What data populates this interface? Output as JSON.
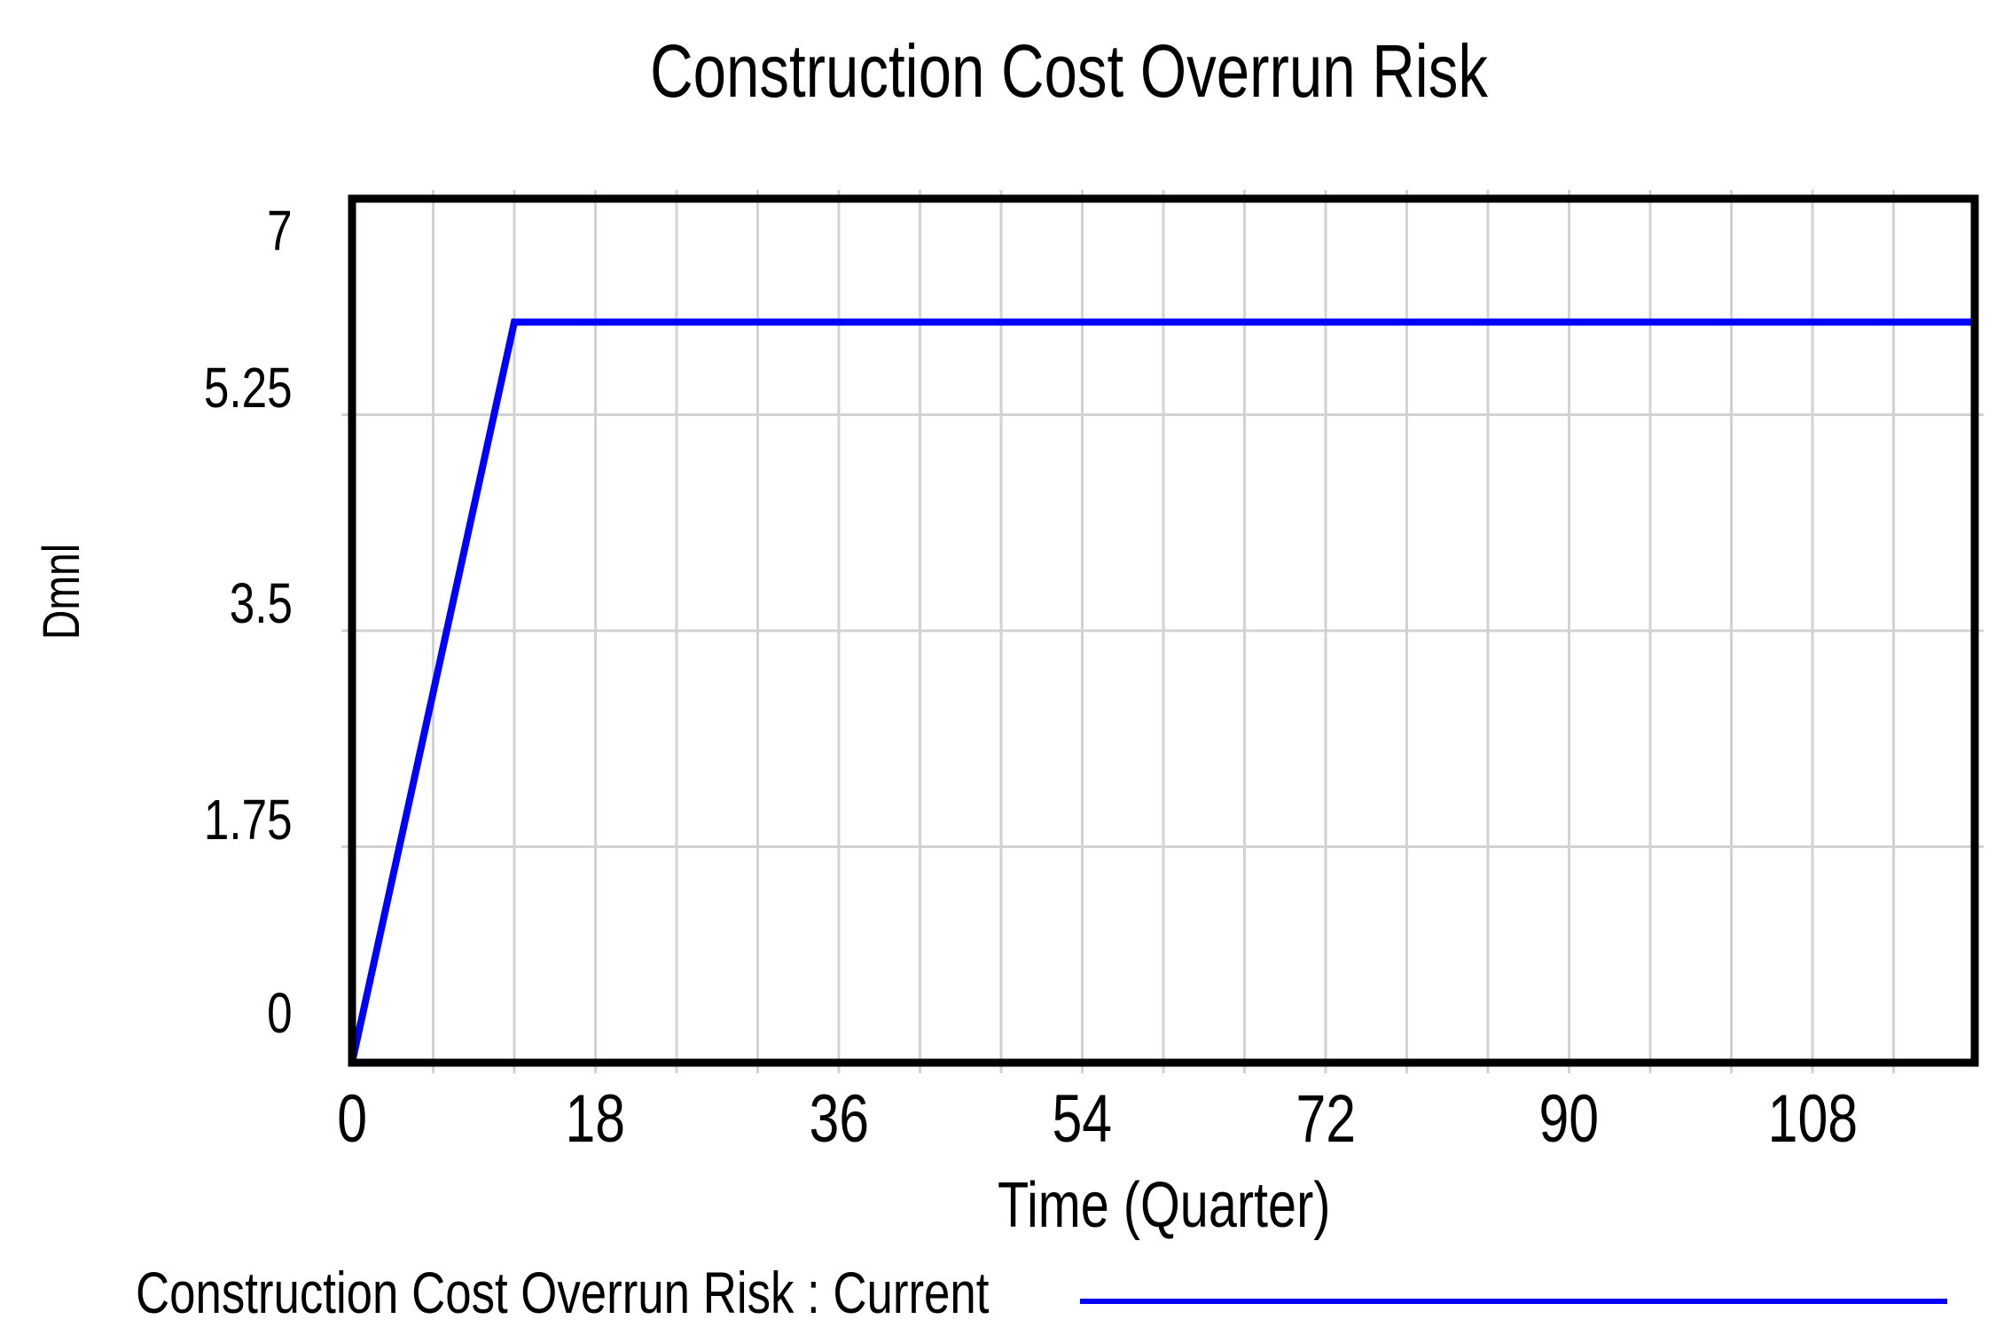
{
  "title": "Construction Cost Overrun Risk",
  "y_axis": {
    "label": "Dmnl",
    "tick_labels": [
      "7",
      "5.25",
      "3.5",
      "1.75",
      "0"
    ]
  },
  "x_axis": {
    "label": "Time (Quarter)",
    "tick_labels": [
      "0",
      "18",
      "36",
      "54",
      "72",
      "90",
      "108"
    ]
  },
  "legend": {
    "entries": [
      {
        "label": "Construction Cost Overrun Risk : Current",
        "color": "#0000ff"
      }
    ]
  },
  "colors": {
    "series": "#0000ff",
    "grid": "#d2d2d2",
    "axis": "#000000",
    "background": "#ffffff"
  },
  "chart_data": {
    "type": "line",
    "title": "Construction Cost Overrun Risk",
    "xlabel": "Time (Quarter)",
    "ylabel": "Dmnl",
    "xlim": [
      0,
      120
    ],
    "ylim": [
      0,
      7
    ],
    "x_major_ticks": [
      0,
      18,
      36,
      54,
      72,
      90,
      108
    ],
    "x_minor_step": 6,
    "y_ticks": [
      0,
      1.75,
      3.5,
      5.25,
      7
    ],
    "grid": true,
    "legend_position": "bottom-left",
    "series": [
      {
        "name": "Construction Cost Overrun Risk : Current",
        "color": "#0000ff",
        "points": [
          [
            0,
            0
          ],
          [
            12,
            6
          ],
          [
            120,
            6
          ]
        ]
      }
    ]
  }
}
